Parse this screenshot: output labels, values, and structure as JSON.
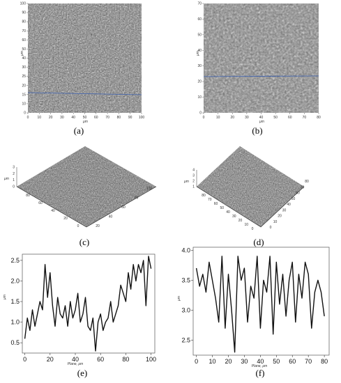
{
  "panels": {
    "a": {
      "label": "(a)",
      "axis_unit": "μm",
      "x_ticks": [
        "0",
        "10",
        "20",
        "30",
        "40",
        "50",
        "60",
        "70",
        "80",
        "90",
        "100"
      ],
      "y_ticks": [
        "0",
        "10",
        "15",
        "20",
        "25",
        "30",
        "40",
        "50",
        "60",
        "70",
        "80",
        "90",
        "100"
      ]
    },
    "b": {
      "label": "(b)",
      "axis_unit": "μm",
      "x_ticks": [
        "0",
        "10",
        "20",
        "30",
        "40",
        "50",
        "60",
        "70",
        "80"
      ],
      "y_ticks": [
        "0",
        "10",
        "20",
        "30",
        "40",
        "50",
        "60",
        "70"
      ]
    },
    "c": {
      "label": "(c)",
      "axis_unit": "μm",
      "z_ticks": [
        "0",
        "1",
        "2",
        "3"
      ],
      "left_ticks": [
        "0",
        "20",
        "40",
        "60",
        "80"
      ],
      "right_ticks": [
        "20",
        "40",
        "60",
        "80",
        "100"
      ]
    },
    "d": {
      "label": "(d)",
      "axis_unit": "μm",
      "z_ticks": [
        "1",
        "2",
        "3",
        "4"
      ],
      "left_ticks": [
        "0",
        "10",
        "20",
        "30",
        "40",
        "50",
        "60",
        "70",
        "80"
      ],
      "right_ticks": [
        "0",
        "10",
        "20",
        "30",
        "40",
        "50",
        "60",
        "70",
        "80"
      ]
    },
    "e": {
      "label": "(e)",
      "xlabel": "Plane, μm",
      "ylabel": "μm"
    },
    "f": {
      "label": "(f)",
      "xlabel": "Plane, μm",
      "ylabel": "μm"
    }
  },
  "chart_data": [
    {
      "type": "line",
      "panel": "e",
      "xlabel": "Plane, μm",
      "ylabel": "μm",
      "xlim": [
        -2,
        103
      ],
      "ylim": [
        0.25,
        2.65
      ],
      "x_ticks": [
        0,
        20,
        40,
        60,
        80,
        100
      ],
      "y_ticks": [
        0.5,
        1.0,
        1.5,
        2.0,
        2.5
      ],
      "x": [
        0,
        2,
        4,
        6,
        8,
        10,
        12,
        14,
        16,
        18,
        20,
        22,
        24,
        26,
        28,
        30,
        32,
        34,
        36,
        38,
        40,
        42,
        44,
        46,
        48,
        50,
        52,
        54,
        56,
        58,
        60,
        62,
        64,
        66,
        68,
        70,
        72,
        74,
        76,
        78,
        80,
        82,
        84,
        86,
        88,
        90,
        92,
        94,
        96,
        98,
        100
      ],
      "y": [
        0.6,
        1.1,
        0.8,
        1.3,
        0.9,
        1.2,
        1.5,
        1.3,
        2.4,
        1.6,
        2.2,
        1.4,
        0.9,
        1.6,
        1.2,
        1.1,
        1.4,
        0.9,
        1.5,
        1.1,
        1.3,
        1.7,
        1.0,
        1.2,
        1.6,
        0.9,
        0.8,
        1.1,
        0.3,
        1.0,
        1.2,
        0.8,
        1.0,
        1.1,
        1.5,
        1.0,
        1.2,
        1.4,
        1.9,
        1.7,
        1.5,
        2.2,
        1.8,
        2.4,
        2.0,
        2.4,
        2.2,
        2.5,
        1.4,
        2.6,
        2.3
      ]
    },
    {
      "type": "line",
      "panel": "f",
      "xlabel": "Plane, μm",
      "ylabel": "μm",
      "xlim": [
        -2,
        83
      ],
      "ylim": [
        2.25,
        4.05
      ],
      "x_ticks": [
        0,
        10,
        20,
        30,
        40,
        50,
        60,
        70,
        80
      ],
      "y_ticks": [
        2.5,
        3.0,
        3.5,
        4.0
      ],
      "x": [
        0,
        2,
        4,
        6,
        8,
        10,
        12,
        14,
        16,
        18,
        20,
        22,
        24,
        26,
        28,
        30,
        32,
        34,
        36,
        38,
        40,
        42,
        44,
        46,
        48,
        50,
        52,
        54,
        56,
        58,
        60,
        62,
        64,
        66,
        68,
        70,
        72,
        74,
        76,
        78,
        80
      ],
      "y": [
        3.7,
        3.4,
        3.6,
        3.3,
        3.8,
        3.5,
        3.2,
        2.8,
        3.9,
        2.7,
        3.6,
        3.0,
        2.3,
        3.9,
        3.5,
        3.7,
        2.8,
        3.4,
        3.2,
        3.9,
        2.7,
        3.5,
        3.3,
        3.9,
        2.6,
        3.8,
        3.1,
        3.6,
        2.9,
        3.5,
        3.8,
        2.8,
        3.6,
        3.2,
        3.8,
        3.6,
        2.7,
        3.3,
        3.5,
        3.3,
        2.9
      ]
    }
  ]
}
